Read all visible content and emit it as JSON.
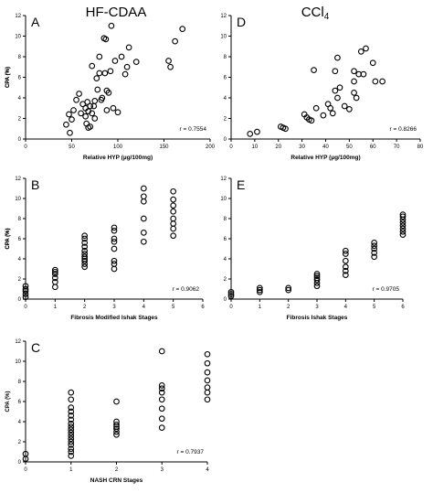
{
  "titles": {
    "left": "HF-CDAA",
    "right_base": "CCl",
    "right_sub": "4"
  },
  "chart_data": [
    {
      "id": "A",
      "type": "scatter",
      "letter": "A",
      "xlabel": "Relative HYP (µg/100mg)",
      "ylabel": "CPA (%)",
      "xlim": [
        0,
        200
      ],
      "ylim": [
        0,
        12
      ],
      "xticks": [
        0,
        50,
        100,
        150,
        200
      ],
      "yticks": [
        0,
        2,
        4,
        6,
        8,
        10,
        12
      ],
      "annotation": "r = 0.7554",
      "x": [
        48,
        44,
        47,
        50,
        52,
        55,
        58,
        60,
        62,
        65,
        65,
        66,
        67,
        68,
        68,
        70,
        70,
        72,
        72,
        74,
        75,
        75,
        77,
        78,
        80,
        80,
        82,
        83,
        85,
        86,
        87,
        88,
        88,
        90,
        92,
        93,
        95,
        97,
        100,
        104,
        108,
        110,
        112,
        120,
        155,
        157,
        162,
        170
      ],
      "y": [
        0.6,
        1.4,
        2.4,
        1.9,
        2.8,
        3.8,
        4.4,
        2.5,
        3.4,
        3.0,
        2.2,
        1.5,
        3.6,
        1.1,
        2.7,
        1.2,
        3.2,
        7.1,
        2.5,
        3.2,
        2.0,
        3.7,
        5.9,
        4.8,
        6.4,
        8.0,
        3.8,
        4.0,
        9.8,
        6.4,
        9.7,
        4.7,
        2.8,
        4.5,
        6.6,
        11.0,
        3.0,
        7.6,
        2.6,
        8.0,
        6.3,
        7.0,
        8.9,
        7.5,
        7.6,
        7.0,
        9.5,
        10.7
      ]
    },
    {
      "id": "D",
      "type": "scatter",
      "letter": "D",
      "xlabel": "Relative HYP (µg/100mg)",
      "ylabel": "CPA (%)",
      "xlim": [
        0,
        80
      ],
      "ylim": [
        0,
        12
      ],
      "xticks": [
        0,
        10,
        20,
        30,
        40,
        50,
        60,
        70,
        80
      ],
      "yticks": [
        0,
        2,
        4,
        6,
        8,
        10,
        12
      ],
      "annotation": "r = 0.8266",
      "x": [
        8,
        11,
        21,
        22,
        23,
        31,
        32,
        33,
        34,
        35,
        36,
        39,
        41,
        42,
        43,
        44,
        44,
        45,
        45,
        46,
        48,
        50,
        52,
        52,
        52,
        53,
        54,
        55,
        56,
        57,
        60,
        61,
        64
      ],
      "y": [
        0.5,
        0.7,
        1.2,
        1.1,
        1.0,
        2.4,
        2.1,
        1.9,
        1.8,
        6.7,
        3.0,
        2.3,
        3.4,
        3.0,
        2.5,
        4.7,
        6.6,
        4.0,
        7.9,
        5.0,
        3.2,
        2.9,
        6.6,
        4.5,
        5.6,
        4.0,
        6.3,
        8.5,
        6.3,
        8.8,
        7.4,
        5.6,
        5.6
      ]
    },
    {
      "id": "B",
      "type": "scatter",
      "letter": "B",
      "xlabel": "Fibrosis Modified Ishak Stages",
      "ylabel": "CPA (%)",
      "xlim": [
        0,
        6
      ],
      "ylim": [
        0,
        12
      ],
      "xticks": [
        0,
        1,
        2,
        3,
        4,
        5,
        6
      ],
      "yticks": [
        0,
        2,
        4,
        6,
        8,
        10,
        12
      ],
      "annotation": "r = 0.9062",
      "x": [
        0,
        0,
        0,
        0,
        0,
        1,
        1,
        1,
        1,
        1,
        1,
        2,
        2,
        2,
        2,
        2,
        2,
        2,
        2,
        2,
        2,
        2,
        3,
        3,
        3,
        3,
        3,
        3,
        3,
        3,
        4,
        4,
        4,
        4,
        4,
        4,
        5,
        5,
        5,
        5,
        5,
        5,
        5,
        5
      ],
      "y": [
        0.2,
        0.5,
        0.8,
        1.0,
        1.3,
        1.2,
        1.7,
        2.1,
        2.5,
        2.7,
        2.9,
        3.2,
        3.5,
        3.8,
        4.0,
        4.2,
        4.5,
        4.8,
        5.2,
        5.6,
        6.0,
        6.3,
        3.0,
        3.5,
        3.8,
        5.0,
        6.0,
        6.8,
        7.1,
        5.7,
        5.7,
        6.6,
        8.0,
        9.7,
        10.2,
        11.0,
        6.3,
        7.0,
        7.5,
        8.0,
        8.7,
        9.3,
        9.9,
        10.7
      ]
    },
    {
      "id": "E",
      "type": "scatter",
      "letter": "E",
      "xlabel": "Fibrosis Ishak Stages",
      "ylabel": "CPA (%)",
      "xlim": [
        0,
        6
      ],
      "ylim": [
        0,
        12
      ],
      "xticks": [
        0,
        1,
        2,
        3,
        4,
        5,
        6
      ],
      "yticks": [
        0,
        2,
        4,
        6,
        8,
        10,
        12
      ],
      "annotation": "r = 0.9705",
      "x": [
        0,
        0,
        0,
        1,
        1,
        1,
        2,
        2,
        3,
        3,
        3,
        3,
        3,
        3,
        4,
        4,
        4,
        4,
        4,
        4,
        5,
        5,
        5,
        5,
        5,
        6,
        6,
        6,
        6,
        6,
        6,
        6,
        6
      ],
      "y": [
        0.3,
        0.5,
        0.7,
        0.7,
        0.9,
        1.1,
        0.9,
        1.1,
        1.3,
        1.6,
        1.9,
        2.1,
        2.3,
        2.5,
        2.4,
        2.8,
        3.2,
        3.8,
        4.5,
        4.8,
        4.2,
        4.6,
        5.0,
        5.3,
        5.6,
        6.4,
        6.7,
        7.0,
        7.3,
        7.6,
        7.9,
        8.2,
        8.4
      ]
    },
    {
      "id": "C",
      "type": "scatter",
      "letter": "C",
      "xlabel": "NASH CRN Stages",
      "ylabel": "CPA (%)",
      "xlim": [
        0,
        4
      ],
      "ylim": [
        0,
        12
      ],
      "xticks": [
        0,
        1,
        2,
        3,
        4
      ],
      "yticks": [
        0,
        2,
        4,
        6,
        8,
        10,
        12
      ],
      "annotation": "r = 0.7937",
      "x": [
        0,
        0,
        1,
        1,
        1,
        1,
        1,
        1,
        1,
        1,
        1,
        1,
        1,
        1,
        1,
        1,
        1,
        1,
        1,
        2,
        2,
        2,
        2,
        2,
        2,
        2,
        3,
        3,
        3,
        3,
        3,
        3,
        3,
        3,
        4,
        4,
        4,
        4,
        4,
        4,
        4
      ],
      "y": [
        0.3,
        0.8,
        0.6,
        1.0,
        1.3,
        1.7,
        2.0,
        2.3,
        2.6,
        2.9,
        3.2,
        3.5,
        3.8,
        4.2,
        4.6,
        5.0,
        5.4,
        6.2,
        6.9,
        2.7,
        3.0,
        3.3,
        3.5,
        3.7,
        4.0,
        6.0,
        3.4,
        4.3,
        5.3,
        6.2,
        6.9,
        7.3,
        7.6,
        11.0,
        6.2,
        6.9,
        7.4,
        8.1,
        8.9,
        9.8,
        10.7
      ]
    }
  ]
}
